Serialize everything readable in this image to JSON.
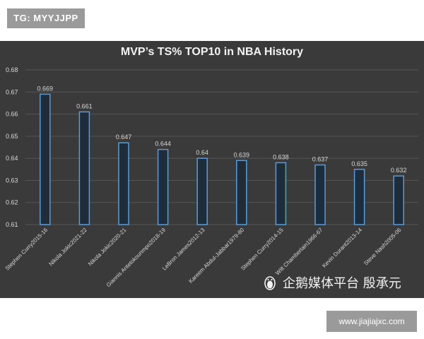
{
  "tag_label": "TG: MYYJJPP",
  "watermark": {
    "icon": "penguin-icon",
    "text": "企鹅媒体平台 殷承元"
  },
  "url_label": "www.jiajiajxc.com",
  "colors": {
    "background": "#3a3a3a",
    "bar_stroke": "#5b9bd5",
    "bar_fill": "#1f2c3a",
    "grid": "#555555",
    "text": "#d9d9d9"
  },
  "chart_data": {
    "type": "bar",
    "title": "MVP’s TS% TOP10 in NBA History",
    "xlabel": "",
    "ylabel": "",
    "ylim": [
      0.61,
      0.68
    ],
    "yticks": [
      "0.61",
      "0.62",
      "0.63",
      "0.64",
      "0.65",
      "0.66",
      "0.67",
      "0.68"
    ],
    "grid": true,
    "categories": [
      "Stephen Curry2015-16",
      "Nikola Jokic2021-22",
      "Nikola Jokic2020-21",
      "Giannis Antetokounmpo2018-19",
      "LeBron James2012-13",
      "Kareem Abdul-Jabbar1979-80",
      "Stephen Curry2014-15",
      "Wilt Chamberlain1966-67",
      "Kevin Durant2013-14",
      "Steve Nash2005-06"
    ],
    "values": [
      0.669,
      0.661,
      0.647,
      0.644,
      0.64,
      0.639,
      0.638,
      0.637,
      0.635,
      0.632
    ],
    "value_labels": [
      "0.669",
      "0.661",
      "0.647",
      "0.644",
      "0.64",
      "0.639",
      "0.638",
      "0.637",
      "0.635",
      "0.632"
    ]
  }
}
